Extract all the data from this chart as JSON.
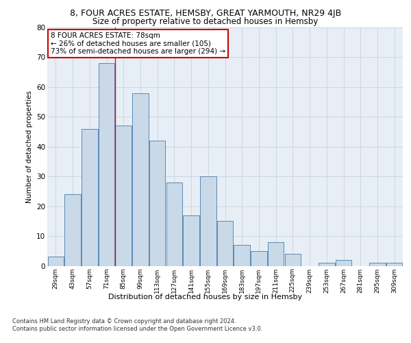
{
  "title_line1": "8, FOUR ACRES ESTATE, HEMSBY, GREAT YARMOUTH, NR29 4JB",
  "title_line2": "Size of property relative to detached houses in Hemsby",
  "xlabel": "Distribution of detached houses by size in Hemsby",
  "ylabel": "Number of detached properties",
  "categories": [
    "29sqm",
    "43sqm",
    "57sqm",
    "71sqm",
    "85sqm",
    "99sqm",
    "113sqm",
    "127sqm",
    "141sqm",
    "155sqm",
    "169sqm",
    "183sqm",
    "197sqm",
    "211sqm",
    "225sqm",
    "239sqm",
    "253sqm",
    "267sqm",
    "281sqm",
    "295sqm",
    "309sqm"
  ],
  "values": [
    3,
    24,
    46,
    68,
    47,
    58,
    42,
    28,
    17,
    30,
    15,
    7,
    5,
    8,
    4,
    0,
    1,
    2,
    0,
    1,
    1
  ],
  "bar_color": "#c9d9e8",
  "bar_edge_color": "#5a8ab5",
  "property_line_bin": 3.5,
  "annotation_text": "8 FOUR ACRES ESTATE: 78sqm\n← 26% of detached houses are smaller (105)\n73% of semi-detached houses are larger (294) →",
  "annotation_box_color": "#ffffff",
  "annotation_box_edge_color": "#cc0000",
  "grid_color": "#cdd6e3",
  "background_color": "#e8eef5",
  "footer_line1": "Contains HM Land Registry data © Crown copyright and database right 2024.",
  "footer_line2": "Contains public sector information licensed under the Open Government Licence v3.0.",
  "ylim": [
    0,
    80
  ],
  "yticks": [
    0,
    10,
    20,
    30,
    40,
    50,
    60,
    70,
    80
  ]
}
